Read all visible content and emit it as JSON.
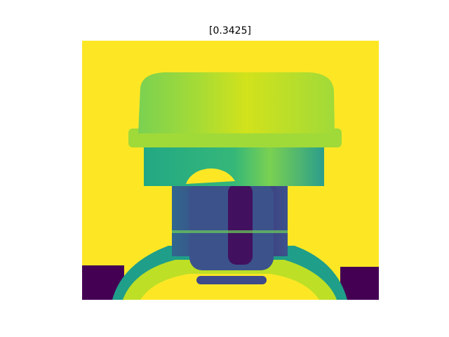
{
  "title": "[0.3425]"
}
